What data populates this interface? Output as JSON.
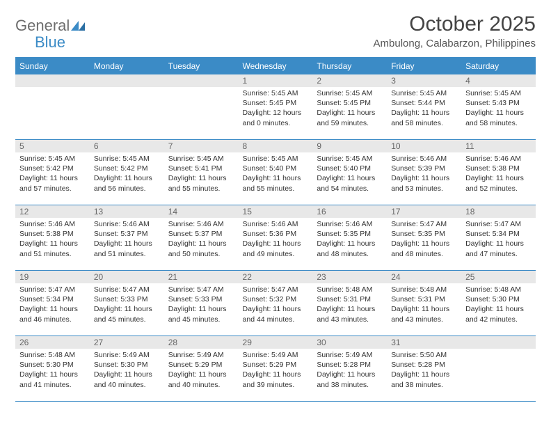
{
  "logo": {
    "word1": "General",
    "word2": "Blue"
  },
  "title": "October 2025",
  "location": "Ambulong, Calabarzon, Philippines",
  "colors": {
    "accent": "#3b8bc6",
    "header_bg": "#3b8bc6",
    "header_text": "#ffffff",
    "daynum_bg": "#e8e8e8",
    "daynum_text": "#666666",
    "body_text": "#333333",
    "logo_gray": "#6d6d6d"
  },
  "day_headers": [
    "Sunday",
    "Monday",
    "Tuesday",
    "Wednesday",
    "Thursday",
    "Friday",
    "Saturday"
  ],
  "weeks": [
    [
      null,
      null,
      null,
      {
        "n": "1",
        "sr": "5:45 AM",
        "ss": "5:45 PM",
        "dl": "12 hours and 0 minutes."
      },
      {
        "n": "2",
        "sr": "5:45 AM",
        "ss": "5:45 PM",
        "dl": "11 hours and 59 minutes."
      },
      {
        "n": "3",
        "sr": "5:45 AM",
        "ss": "5:44 PM",
        "dl": "11 hours and 58 minutes."
      },
      {
        "n": "4",
        "sr": "5:45 AM",
        "ss": "5:43 PM",
        "dl": "11 hours and 58 minutes."
      }
    ],
    [
      {
        "n": "5",
        "sr": "5:45 AM",
        "ss": "5:42 PM",
        "dl": "11 hours and 57 minutes."
      },
      {
        "n": "6",
        "sr": "5:45 AM",
        "ss": "5:42 PM",
        "dl": "11 hours and 56 minutes."
      },
      {
        "n": "7",
        "sr": "5:45 AM",
        "ss": "5:41 PM",
        "dl": "11 hours and 55 minutes."
      },
      {
        "n": "8",
        "sr": "5:45 AM",
        "ss": "5:40 PM",
        "dl": "11 hours and 55 minutes."
      },
      {
        "n": "9",
        "sr": "5:45 AM",
        "ss": "5:40 PM",
        "dl": "11 hours and 54 minutes."
      },
      {
        "n": "10",
        "sr": "5:46 AM",
        "ss": "5:39 PM",
        "dl": "11 hours and 53 minutes."
      },
      {
        "n": "11",
        "sr": "5:46 AM",
        "ss": "5:38 PM",
        "dl": "11 hours and 52 minutes."
      }
    ],
    [
      {
        "n": "12",
        "sr": "5:46 AM",
        "ss": "5:38 PM",
        "dl": "11 hours and 51 minutes."
      },
      {
        "n": "13",
        "sr": "5:46 AM",
        "ss": "5:37 PM",
        "dl": "11 hours and 51 minutes."
      },
      {
        "n": "14",
        "sr": "5:46 AM",
        "ss": "5:37 PM",
        "dl": "11 hours and 50 minutes."
      },
      {
        "n": "15",
        "sr": "5:46 AM",
        "ss": "5:36 PM",
        "dl": "11 hours and 49 minutes."
      },
      {
        "n": "16",
        "sr": "5:46 AM",
        "ss": "5:35 PM",
        "dl": "11 hours and 48 minutes."
      },
      {
        "n": "17",
        "sr": "5:47 AM",
        "ss": "5:35 PM",
        "dl": "11 hours and 48 minutes."
      },
      {
        "n": "18",
        "sr": "5:47 AM",
        "ss": "5:34 PM",
        "dl": "11 hours and 47 minutes."
      }
    ],
    [
      {
        "n": "19",
        "sr": "5:47 AM",
        "ss": "5:34 PM",
        "dl": "11 hours and 46 minutes."
      },
      {
        "n": "20",
        "sr": "5:47 AM",
        "ss": "5:33 PM",
        "dl": "11 hours and 45 minutes."
      },
      {
        "n": "21",
        "sr": "5:47 AM",
        "ss": "5:33 PM",
        "dl": "11 hours and 45 minutes."
      },
      {
        "n": "22",
        "sr": "5:47 AM",
        "ss": "5:32 PM",
        "dl": "11 hours and 44 minutes."
      },
      {
        "n": "23",
        "sr": "5:48 AM",
        "ss": "5:31 PM",
        "dl": "11 hours and 43 minutes."
      },
      {
        "n": "24",
        "sr": "5:48 AM",
        "ss": "5:31 PM",
        "dl": "11 hours and 43 minutes."
      },
      {
        "n": "25",
        "sr": "5:48 AM",
        "ss": "5:30 PM",
        "dl": "11 hours and 42 minutes."
      }
    ],
    [
      {
        "n": "26",
        "sr": "5:48 AM",
        "ss": "5:30 PM",
        "dl": "11 hours and 41 minutes."
      },
      {
        "n": "27",
        "sr": "5:49 AM",
        "ss": "5:30 PM",
        "dl": "11 hours and 40 minutes."
      },
      {
        "n": "28",
        "sr": "5:49 AM",
        "ss": "5:29 PM",
        "dl": "11 hours and 40 minutes."
      },
      {
        "n": "29",
        "sr": "5:49 AM",
        "ss": "5:29 PM",
        "dl": "11 hours and 39 minutes."
      },
      {
        "n": "30",
        "sr": "5:49 AM",
        "ss": "5:28 PM",
        "dl": "11 hours and 38 minutes."
      },
      {
        "n": "31",
        "sr": "5:50 AM",
        "ss": "5:28 PM",
        "dl": "11 hours and 38 minutes."
      },
      null
    ]
  ],
  "labels": {
    "sunrise": "Sunrise:",
    "sunset": "Sunset:",
    "daylight": "Daylight:"
  }
}
